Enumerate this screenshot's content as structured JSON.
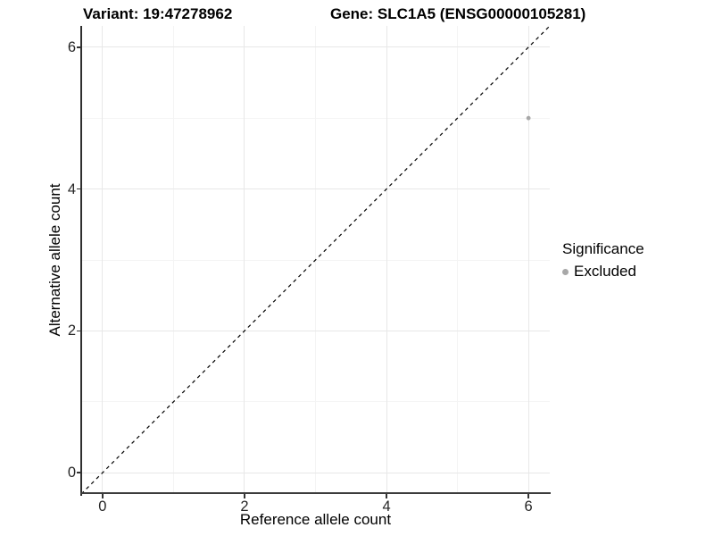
{
  "title": {
    "variant": "Variant: 19:47278962",
    "gene": "Gene: SLC1A5 (ENSG00000105281)"
  },
  "chart_data": {
    "type": "scatter",
    "title": "Variant: 19:47278962   Gene: SLC1A5 (ENSG00000105281)",
    "xlabel": "Reference allele count",
    "ylabel": "Alternative allele count",
    "xlim": [
      -0.3,
      6.3
    ],
    "ylim": [
      -0.3,
      6.3
    ],
    "xticks": [
      0,
      2,
      4,
      6
    ],
    "yticks": [
      0,
      2,
      4,
      6
    ],
    "minor_xticks": [
      1,
      3,
      5
    ],
    "minor_yticks": [
      1,
      3,
      5
    ],
    "grid": true,
    "series": [
      {
        "name": "Excluded",
        "color": "#A8A8A8",
        "points": [
          {
            "x": 6,
            "y": 5
          }
        ]
      }
    ],
    "reference_line": {
      "type": "identity",
      "from": [
        -0.3,
        -0.3
      ],
      "to": [
        6.3,
        6.3
      ],
      "style": "dashed",
      "color": "#000000"
    },
    "legend": {
      "title": "Significance",
      "position": "right",
      "entries": [
        {
          "label": "Excluded",
          "color": "#A8A8A8"
        }
      ]
    }
  },
  "colors": {
    "background": "#FFFFFF",
    "grid_major": "#E8E8E8",
    "grid_minor": "#F4F4F4",
    "axis_line": "#3C3C3C",
    "point": "#A8A8A8",
    "reference_line": "#000000",
    "text": "#000000"
  }
}
